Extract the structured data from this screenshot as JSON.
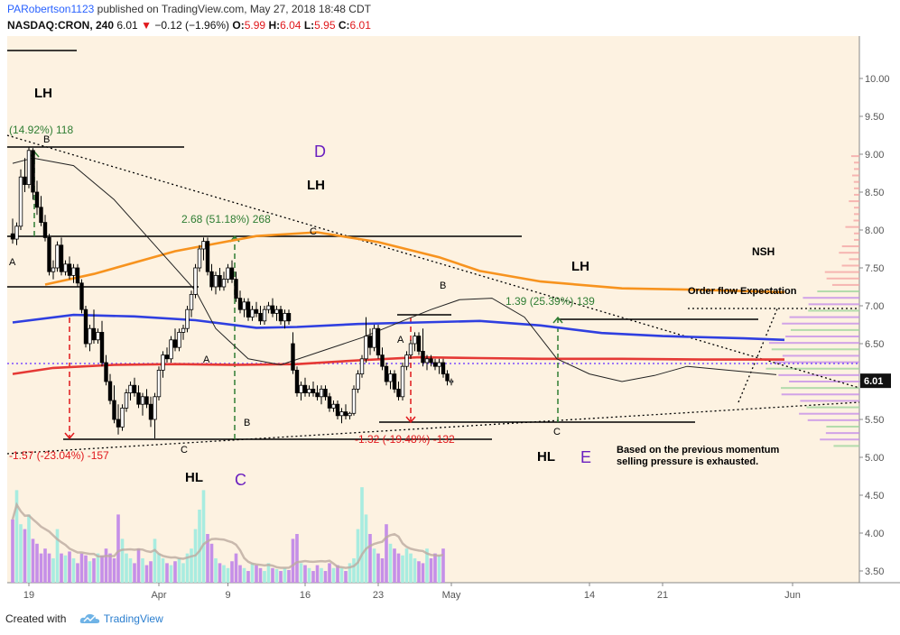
{
  "header": {
    "publisher": "PARobertson1123",
    "published_text": "published on TradingView.com, May 27, 2018 18:48 CDT",
    "symbol": "NASDAQ:CRON, 240",
    "last": "6.01",
    "change": "−0.12 (−1.96%)",
    "o_label": "O:",
    "o": "5.99",
    "h_label": "H:",
    "h": "6.04",
    "l_label": "L:",
    "l": "5.95",
    "c_label": "C:",
    "c": "6.01"
  },
  "footer": {
    "created_with": "Created with",
    "brand": "TradingView"
  },
  "colors": {
    "bg": "#fdf2e1",
    "up": "#2e7d32",
    "down": "#c9302c",
    "candle": "#000000",
    "ma_orange": "#f7931e",
    "ma_red": "#e53935",
    "ma_blue": "#2f3fe0",
    "vol_purple": "#c58fe8",
    "vol_teal": "#a8ece0",
    "green_label": "#2e7d32",
    "red_label": "#e0171b",
    "purple_text": "#6a1fbf"
  },
  "chart_data": {
    "type": "candlestick",
    "title": "NASDAQ:CRON, 240",
    "price_axis": {
      "min": 3.35,
      "max": 10.35,
      "ticks": [
        "3.50",
        "4.00",
        "4.50",
        "5.00",
        "5.50",
        "6.00",
        "6.50",
        "7.00",
        "7.50",
        "8.00",
        "8.50",
        "9.00",
        "9.50",
        "10.00"
      ],
      "last_price_label": "6.01"
    },
    "time_axis": {
      "ticks": [
        "19",
        "Apr",
        "9",
        "16",
        "23",
        "May",
        "14",
        "21",
        "Jun"
      ]
    },
    "candles": [
      [
        7.95,
        8.15,
        7.82,
        7.88
      ],
      [
        7.88,
        8.1,
        7.8,
        8.05
      ],
      [
        8.05,
        8.8,
        8.0,
        8.7
      ],
      [
        8.7,
        8.95,
        8.5,
        8.6
      ],
      [
        8.6,
        9.1,
        8.55,
        9.05
      ],
      [
        9.05,
        9.08,
        8.4,
        8.5
      ],
      [
        8.5,
        8.65,
        8.2,
        8.3
      ],
      [
        8.3,
        8.45,
        8.05,
        8.1
      ],
      [
        8.1,
        8.2,
        7.85,
        7.9
      ],
      [
        7.9,
        7.95,
        7.4,
        7.45
      ],
      [
        7.45,
        7.6,
        7.35,
        7.5
      ],
      [
        7.5,
        7.85,
        7.45,
        7.8
      ],
      [
        7.8,
        7.9,
        7.4,
        7.45
      ],
      [
        7.45,
        7.6,
        7.4,
        7.55
      ],
      [
        7.55,
        7.65,
        7.35,
        7.4
      ],
      [
        7.4,
        7.55,
        7.3,
        7.5
      ],
      [
        7.5,
        7.55,
        7.25,
        7.3
      ],
      [
        7.3,
        7.35,
        6.9,
        6.95
      ],
      [
        6.95,
        7.0,
        6.45,
        6.5
      ],
      [
        6.5,
        6.75,
        6.4,
        6.7
      ],
      [
        6.7,
        6.95,
        6.5,
        6.55
      ],
      [
        6.55,
        6.7,
        6.5,
        6.65
      ],
      [
        6.65,
        6.8,
        6.2,
        6.25
      ],
      [
        6.25,
        6.35,
        5.95,
        6.0
      ],
      [
        6.0,
        6.1,
        5.7,
        5.75
      ],
      [
        5.75,
        5.95,
        5.45,
        5.5
      ],
      [
        5.5,
        5.7,
        5.3,
        5.4
      ],
      [
        5.4,
        5.7,
        5.35,
        5.65
      ],
      [
        5.65,
        5.9,
        5.6,
        5.85
      ],
      [
        5.85,
        6.0,
        5.75,
        5.95
      ],
      [
        5.95,
        6.05,
        5.8,
        5.85
      ],
      [
        5.85,
        5.95,
        5.65,
        5.7
      ],
      [
        5.7,
        5.85,
        5.55,
        5.8
      ],
      [
        5.8,
        5.9,
        5.65,
        5.7
      ],
      [
        5.7,
        5.8,
        5.4,
        5.5
      ],
      [
        5.5,
        5.85,
        5.25,
        5.8
      ],
      [
        5.8,
        6.2,
        5.75,
        6.15
      ],
      [
        6.15,
        6.4,
        6.05,
        6.35
      ],
      [
        6.35,
        6.45,
        6.25,
        6.3
      ],
      [
        6.3,
        6.6,
        6.25,
        6.55
      ],
      [
        6.55,
        6.7,
        6.4,
        6.45
      ],
      [
        6.45,
        6.7,
        6.4,
        6.65
      ],
      [
        6.65,
        6.75,
        6.55,
        6.7
      ],
      [
        6.7,
        7.0,
        6.65,
        6.95
      ],
      [
        6.95,
        7.2,
        6.85,
        7.15
      ],
      [
        7.15,
        7.55,
        7.1,
        7.5
      ],
      [
        7.5,
        7.8,
        7.45,
        7.75
      ],
      [
        7.75,
        7.9,
        7.6,
        7.85
      ],
      [
        7.85,
        7.9,
        7.4,
        7.45
      ],
      [
        7.45,
        7.55,
        7.2,
        7.25
      ],
      [
        7.25,
        7.45,
        7.15,
        7.4
      ],
      [
        7.4,
        7.5,
        7.2,
        7.25
      ],
      [
        7.25,
        7.45,
        7.2,
        7.35
      ],
      [
        7.35,
        7.55,
        7.3,
        7.5
      ],
      [
        7.5,
        7.6,
        7.3,
        7.35
      ],
      [
        7.35,
        7.45,
        7.05,
        7.1
      ],
      [
        7.1,
        7.2,
        6.9,
        6.95
      ],
      [
        6.95,
        7.1,
        6.85,
        7.05
      ],
      [
        7.05,
        7.1,
        6.8,
        6.85
      ],
      [
        6.85,
        7.0,
        6.8,
        6.95
      ],
      [
        6.95,
        7.05,
        6.85,
        6.9
      ],
      [
        6.9,
        7.0,
        6.75,
        6.8
      ],
      [
        6.8,
        7.0,
        6.75,
        6.95
      ],
      [
        6.95,
        7.05,
        6.9,
        7.0
      ],
      [
        7.0,
        7.1,
        6.85,
        6.9
      ],
      [
        6.9,
        7.0,
        6.8,
        6.95
      ],
      [
        6.95,
        7.0,
        6.75,
        6.8
      ],
      [
        6.8,
        6.95,
        6.7,
        6.9
      ],
      [
        6.9,
        6.95,
        6.75,
        6.8
      ],
      [
        6.5,
        6.65,
        6.1,
        6.15
      ],
      [
        6.15,
        6.2,
        5.8,
        5.85
      ],
      [
        5.85,
        6.0,
        5.75,
        5.95
      ],
      [
        5.95,
        6.05,
        5.8,
        5.85
      ],
      [
        5.85,
        5.95,
        5.8,
        5.9
      ],
      [
        5.9,
        6.0,
        5.8,
        5.85
      ],
      [
        5.85,
        5.95,
        5.75,
        5.8
      ],
      [
        5.8,
        5.95,
        5.7,
        5.9
      ],
      [
        5.9,
        5.95,
        5.75,
        5.8
      ],
      [
        5.8,
        5.85,
        5.6,
        5.65
      ],
      [
        5.65,
        5.75,
        5.6,
        5.7
      ],
      [
        5.7,
        5.75,
        5.5,
        5.55
      ],
      [
        5.55,
        5.65,
        5.45,
        5.6
      ],
      [
        5.6,
        5.7,
        5.5,
        5.55
      ],
      [
        5.55,
        5.6,
        5.5,
        5.58
      ],
      [
        5.58,
        5.95,
        5.55,
        5.9
      ],
      [
        5.9,
        6.15,
        5.85,
        6.1
      ],
      [
        6.1,
        6.35,
        6.05,
        6.3
      ],
      [
        6.3,
        6.85,
        6.25,
        6.6
      ],
      [
        6.6,
        6.7,
        6.35,
        6.45
      ],
      [
        6.45,
        6.75,
        6.4,
        6.7
      ],
      [
        6.7,
        6.75,
        6.3,
        6.35
      ],
      [
        6.35,
        6.45,
        6.15,
        6.2
      ],
      [
        6.2,
        6.25,
        5.95,
        6.0
      ],
      [
        6.0,
        6.15,
        5.9,
        6.1
      ],
      [
        6.1,
        6.15,
        5.85,
        5.9
      ],
      [
        5.9,
        6.0,
        5.75,
        5.8
      ],
      [
        5.8,
        6.25,
        5.75,
        6.2
      ],
      [
        6.2,
        6.4,
        6.15,
        6.35
      ],
      [
        6.35,
        6.55,
        6.3,
        6.5
      ],
      [
        6.5,
        6.65,
        6.4,
        6.6
      ],
      [
        6.6,
        6.65,
        6.35,
        6.4
      ],
      [
        6.4,
        6.7,
        6.2,
        6.25
      ],
      [
        6.25,
        6.35,
        6.15,
        6.3
      ],
      [
        6.3,
        6.35,
        6.2,
        6.25
      ],
      [
        6.25,
        6.3,
        6.15,
        6.2
      ],
      [
        6.2,
        6.3,
        6.1,
        6.25
      ],
      [
        6.25,
        6.3,
        6.05,
        6.1
      ],
      [
        6.1,
        6.15,
        5.95,
        6.01
      ],
      [
        5.99,
        6.04,
        5.95,
        6.01
      ]
    ],
    "moving_averages": [
      {
        "color": "#f7931e",
        "points": [
          [
            8,
            7.28
          ],
          [
            20,
            7.42
          ],
          [
            40,
            7.72
          ],
          [
            60,
            7.92
          ],
          [
            75,
            7.97
          ],
          [
            90,
            7.84
          ],
          [
            105,
            7.64
          ],
          [
            115,
            7.46
          ],
          [
            130,
            7.32
          ],
          [
            150,
            7.23
          ],
          [
            170,
            7.21
          ],
          [
            190,
            7.18
          ]
        ]
      },
      {
        "color": "#2f3fe0",
        "points": [
          [
            0,
            6.78
          ],
          [
            15,
            6.88
          ],
          [
            30,
            6.86
          ],
          [
            45,
            6.81
          ],
          [
            60,
            6.71
          ],
          [
            70,
            6.72
          ],
          [
            85,
            6.76
          ],
          [
            100,
            6.78
          ],
          [
            115,
            6.8
          ],
          [
            130,
            6.74
          ],
          [
            145,
            6.64
          ],
          [
            160,
            6.6
          ],
          [
            180,
            6.57
          ],
          [
            190,
            6.55
          ]
        ]
      },
      {
        "color": "#e53935",
        "points": [
          [
            0,
            6.1
          ],
          [
            10,
            6.18
          ],
          [
            25,
            6.22
          ],
          [
            40,
            6.23
          ],
          [
            55,
            6.22
          ],
          [
            70,
            6.23
          ],
          [
            85,
            6.28
          ],
          [
            100,
            6.32
          ],
          [
            115,
            6.31
          ],
          [
            130,
            6.3
          ],
          [
            150,
            6.3
          ],
          [
            170,
            6.29
          ],
          [
            190,
            6.29
          ]
        ]
      },
      {
        "color": "#222222",
        "points": [
          [
            0,
            8.88
          ],
          [
            5,
            8.95
          ],
          [
            15,
            8.85
          ],
          [
            25,
            8.4
          ],
          [
            35,
            7.8
          ],
          [
            45,
            7.2
          ],
          [
            50,
            6.7
          ],
          [
            58,
            6.3
          ],
          [
            66,
            6.22
          ],
          [
            76,
            6.4
          ],
          [
            86,
            6.58
          ],
          [
            96,
            6.8
          ],
          [
            103,
            6.95
          ],
          [
            110,
            7.08
          ],
          [
            118,
            7.1
          ],
          [
            126,
            6.85
          ],
          [
            134,
            6.3
          ],
          [
            142,
            6.1
          ],
          [
            150,
            6.0
          ],
          [
            158,
            6.08
          ],
          [
            166,
            6.2
          ],
          [
            176,
            6.15
          ],
          [
            188,
            6.09
          ]
        ]
      }
    ],
    "volume": [
      0.65,
      0.95,
      0.6,
      0.55,
      0.7,
      0.45,
      0.4,
      0.3,
      0.35,
      0.3,
      0.25,
      0.55,
      0.3,
      0.28,
      0.32,
      0.25,
      0.2,
      0.3,
      0.28,
      0.22,
      0.25,
      0.3,
      0.28,
      0.35,
      0.3,
      0.25,
      0.7,
      0.45,
      0.3,
      0.25,
      0.2,
      0.35,
      0.25,
      0.18,
      0.22,
      0.45,
      0.3,
      0.25,
      0.2,
      0.18,
      0.22,
      0.25,
      0.2,
      0.3,
      0.35,
      0.55,
      0.75,
      0.95,
      0.5,
      0.4,
      0.25,
      0.2,
      0.18,
      0.15,
      0.22,
      0.3,
      0.18,
      0.15,
      0.12,
      0.2,
      0.18,
      0.15,
      0.12,
      0.2,
      0.15,
      0.14,
      0.12,
      0.15,
      0.13,
      0.45,
      0.5,
      0.2,
      0.18,
      0.15,
      0.12,
      0.18,
      0.15,
      0.12,
      0.2,
      0.15,
      0.18,
      0.15,
      0.12,
      0.2,
      0.25,
      0.55,
      0.98,
      0.7,
      0.5,
      0.35,
      0.3,
      0.25,
      0.6,
      0.4,
      0.35,
      0.3,
      0.28,
      0.35,
      0.3,
      0.25,
      0.22,
      0.2,
      0.35,
      0.25,
      0.3,
      0.28,
      0.35
    ],
    "annotations": {
      "wave_labels": {
        "LH1": "LH",
        "LH2": "LH",
        "LH3": "LH",
        "HL1": "HL",
        "HL2": "HL",
        "D": "D",
        "C": "C",
        "E": "E",
        "NSH": "NSH"
      },
      "points": {
        "A": "A",
        "B": "B",
        "C": "C"
      },
      "measure_green_1": "(14.92%) 118",
      "measure_green_2": "2.68 (51.18%) 268",
      "measure_green_3": "1.39 (25.39%) 139",
      "measure_red_1": "-1.57 (-23.04%) -157",
      "measure_red_2": "-1.32 (-19.48%) -132",
      "order_flow": "Order flow Expectation",
      "note_line1": "Based on the previous momentum",
      "note_line2": "selling pressure is exhausted."
    }
  }
}
